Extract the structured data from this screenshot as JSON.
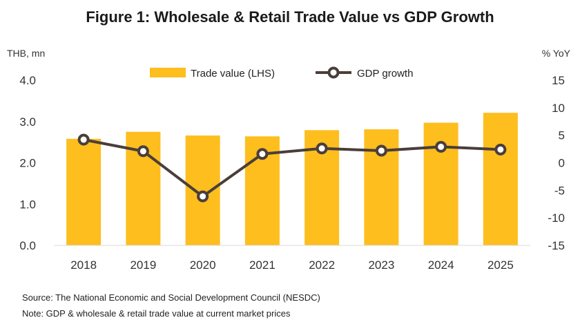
{
  "chart_data": {
    "type": "bar",
    "title": "Figure 1: Wholesale & Retail Trade Value vs GDP Growth",
    "ylabel_left": "THB, mn",
    "ylabel_right": "% YoY",
    "categories": [
      "2018",
      "2019",
      "2020",
      "2021",
      "2022",
      "2023",
      "2024",
      "2025"
    ],
    "ylim_left": [
      0,
      4
    ],
    "yticks_left": [
      "0.0",
      "1.0",
      "2.0",
      "3.0",
      "4.0"
    ],
    "ylim_right": [
      -15,
      15
    ],
    "yticks_right": [
      "-15",
      "-10",
      "-5",
      "0",
      "5",
      "10",
      "15"
    ],
    "legend_position": "top",
    "series": [
      {
        "name": "Trade value (LHS)",
        "type": "bar",
        "axis": "left",
        "color": "#FDBE1E",
        "values": [
          2.58,
          2.75,
          2.66,
          2.64,
          2.79,
          2.81,
          2.97,
          3.21
        ]
      },
      {
        "name": "GDP growth",
        "type": "line",
        "axis": "right",
        "color": "#4A3E3A",
        "values": [
          4.2,
          2.1,
          -6.1,
          1.6,
          2.6,
          2.2,
          2.9,
          2.4
        ]
      }
    ]
  },
  "notes": {
    "source": "Source: The National Economic and Social Development Council (NESDC)",
    "note": "Note: GDP & wholesale & retail trade value at current market prices"
  }
}
